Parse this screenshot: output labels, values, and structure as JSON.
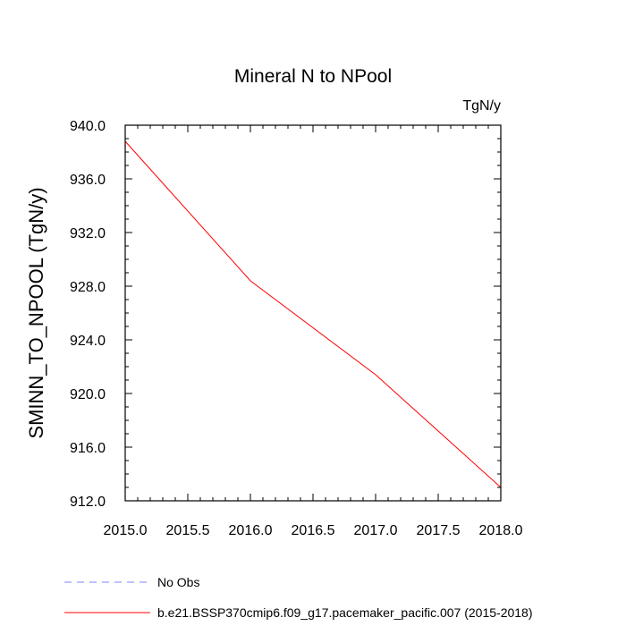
{
  "chart_data": {
    "type": "line",
    "title": "Mineral N to NPool",
    "units_label": "TgN/y",
    "ylabel": "SMINN_TO_NPOOL  (TgN/y)",
    "xlabel": "",
    "xlim": [
      2015.0,
      2018.0
    ],
    "ylim": [
      912.0,
      940.0
    ],
    "x_ticks": [
      "2015.0",
      "2015.5",
      "2016.0",
      "2016.5",
      "2017.0",
      "2017.5",
      "2018.0"
    ],
    "y_ticks": [
      "912.0",
      "916.0",
      "920.0",
      "924.0",
      "928.0",
      "932.0",
      "936.0",
      "940.0"
    ],
    "grid": false,
    "legend_position": "bottom-left, below plot",
    "series": [
      {
        "name": "b.e21.BSSP370cmip6.f09_g17.pacemaker_pacific.007 (2015-2018)",
        "color": "#ff0000",
        "dash": "solid",
        "x": [
          2015.0,
          2016.0,
          2017.0,
          2018.0
        ],
        "y": [
          938.8,
          928.4,
          921.4,
          913.0
        ]
      }
    ],
    "legend": [
      {
        "label": "No Obs",
        "color": "#8080ff",
        "dash": "dashed"
      },
      {
        "label": "b.e21.BSSP370cmip6.f09_g17.pacemaker_pacific.007 (2015-2018)",
        "color": "#ff0000",
        "dash": "solid"
      }
    ]
  }
}
